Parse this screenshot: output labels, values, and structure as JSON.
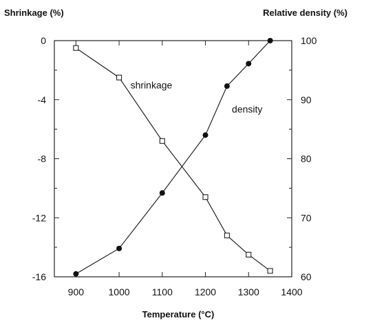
{
  "chart_data": {
    "type": "line",
    "title": "",
    "xlabel": "Temperature (°C)",
    "ylabel_left": "Shrinkage (%)",
    "ylabel_right": "Relative density (%)",
    "xlim": [
      850,
      1400
    ],
    "ylim_left": [
      -16,
      0
    ],
    "ylim_right": [
      60,
      100
    ],
    "x_ticks": [
      900,
      1000,
      1100,
      1200,
      1300,
      1400
    ],
    "y_left_ticks": [
      0,
      -4,
      -8,
      -12,
      -16
    ],
    "y_right_ticks": [
      100,
      90,
      80,
      70,
      60
    ],
    "grid": false,
    "legend": "none",
    "series": [
      {
        "name": "shrinkage",
        "axis": "left",
        "marker": "open-square",
        "x": [
          900,
          1000,
          1100,
          1200,
          1250,
          1300,
          1350
        ],
        "y": [
          -0.5,
          -2.5,
          -6.8,
          -10.6,
          -13.2,
          -14.5,
          -15.6
        ]
      },
      {
        "name": "density",
        "axis": "right",
        "marker": "filled-circle",
        "x": [
          900,
          1000,
          1100,
          1200,
          1250,
          1300,
          1350
        ],
        "y": [
          60.5,
          64.8,
          74.2,
          84.0,
          92.3,
          96.1,
          100.0
        ]
      }
    ],
    "annotations": [
      {
        "text": "shrinkage",
        "series": "shrinkage",
        "x": 1020,
        "y_left": -3.0
      },
      {
        "text": "density",
        "series": "density",
        "x": 1255,
        "y_right": 88.4
      }
    ],
    "colors": {
      "line": "#222222",
      "marker_fill": "#111111",
      "open_marker_fill": "#ffffff"
    }
  }
}
